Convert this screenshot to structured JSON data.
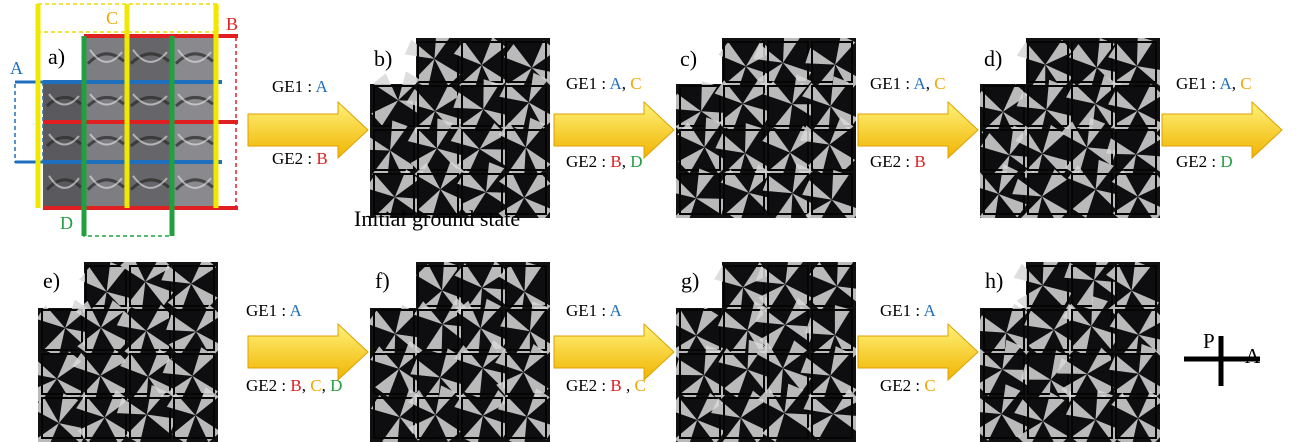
{
  "panels": [
    {
      "id": "a",
      "label": "a)"
    },
    {
      "id": "b",
      "label": "b)",
      "caption": "Initial ground state"
    },
    {
      "id": "c",
      "label": "c)"
    },
    {
      "id": "d",
      "label": "d)"
    },
    {
      "id": "e",
      "label": "e)"
    },
    {
      "id": "f",
      "label": "f)"
    },
    {
      "id": "g",
      "label": "g)"
    },
    {
      "id": "h",
      "label": "h)"
    }
  ],
  "electrode_marks": {
    "A": "A",
    "B": "B",
    "C": "C",
    "D": "D"
  },
  "colors": {
    "A": "#1f6fbf",
    "B": "#e02020",
    "C": "#f2a600",
    "D": "#22a040",
    "arrow_light": "#fff27a",
    "arrow_dark": "#f0b400"
  },
  "transitions": [
    {
      "id": "ab",
      "ge1_prefix": "GE1 : ",
      "ge1": [
        {
          "t": "A",
          "c": "A"
        }
      ],
      "ge2_prefix": "GE2 : ",
      "ge2": [
        {
          "t": "B",
          "c": "B"
        }
      ]
    },
    {
      "id": "bc",
      "ge1_prefix": "GE1 : ",
      "ge1": [
        {
          "t": "A",
          "c": "A"
        },
        {
          "t": ", ",
          "c": ""
        },
        {
          "t": "C",
          "c": "C"
        }
      ],
      "ge2_prefix": "GE2 : ",
      "ge2": [
        {
          "t": "B",
          "c": "B"
        },
        {
          "t": ", ",
          "c": ""
        },
        {
          "t": "D",
          "c": "D"
        }
      ]
    },
    {
      "id": "cd",
      "ge1_prefix": "GE1 : ",
      "ge1": [
        {
          "t": "A",
          "c": "A"
        },
        {
          "t": ", ",
          "c": ""
        },
        {
          "t": "C",
          "c": "C"
        }
      ],
      "ge2_prefix": "GE2 : ",
      "ge2": [
        {
          "t": "B",
          "c": "B"
        }
      ]
    },
    {
      "id": "d_out",
      "ge1_prefix": "GE1 : ",
      "ge1": [
        {
          "t": "A",
          "c": "A"
        },
        {
          "t": ", ",
          "c": ""
        },
        {
          "t": "C",
          "c": "C"
        }
      ],
      "ge2_prefix": "GE2 : ",
      "ge2": [
        {
          "t": "D",
          "c": "D"
        }
      ]
    },
    {
      "id": "ef",
      "ge1_prefix": "GE1 : ",
      "ge1": [
        {
          "t": "A",
          "c": "A"
        }
      ],
      "ge2_prefix": "GE2 : ",
      "ge2": [
        {
          "t": "B",
          "c": "B"
        },
        {
          "t": ", ",
          "c": ""
        },
        {
          "t": "C",
          "c": "C"
        },
        {
          "t": ", ",
          "c": ""
        },
        {
          "t": "D",
          "c": "D"
        }
      ]
    },
    {
      "id": "fg",
      "ge1_prefix": "GE1 : ",
      "ge1": [
        {
          "t": "A",
          "c": "A"
        }
      ],
      "ge2_prefix": "GE2 : ",
      "ge2": [
        {
          "t": "B",
          "c": "B"
        },
        {
          "t": " , ",
          "c": ""
        },
        {
          "t": "C",
          "c": "C"
        }
      ]
    },
    {
      "id": "gh",
      "ge1_prefix": "GE1 : ",
      "ge1": [
        {
          "t": "A",
          "c": "A"
        }
      ],
      "ge2_prefix": "GE2 : ",
      "ge2": [
        {
          "t": "C",
          "c": "C"
        }
      ]
    }
  ],
  "polarizer": {
    "p": "P",
    "a": "A"
  }
}
